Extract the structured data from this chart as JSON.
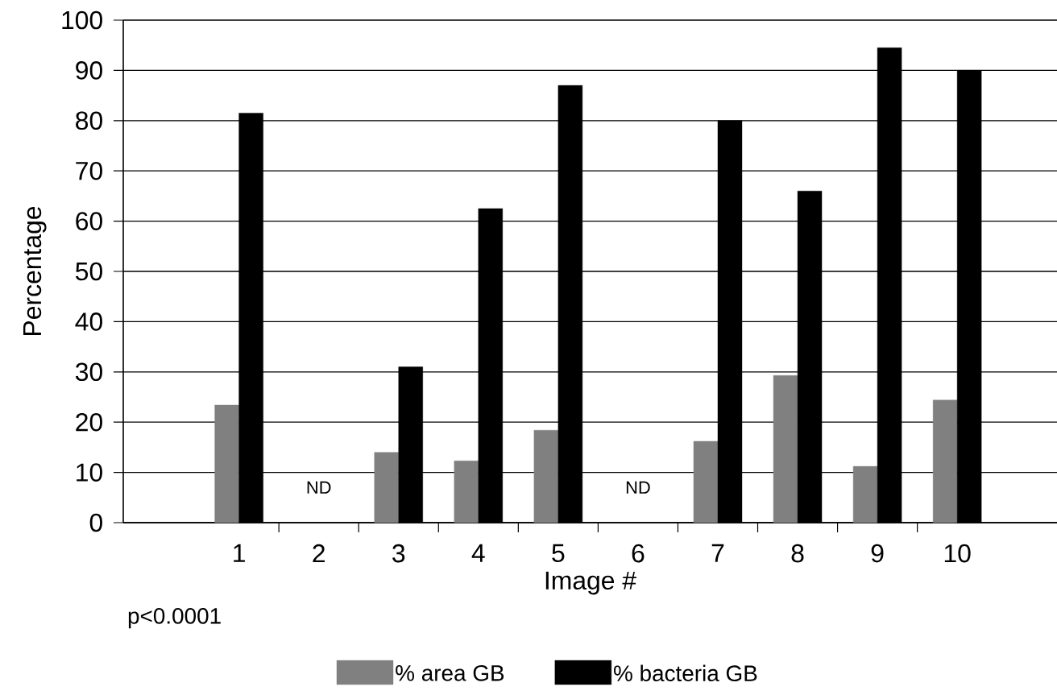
{
  "chart_data": {
    "type": "bar",
    "xlabel": "Image #",
    "ylabel": "Percentage",
    "categories": [
      "1",
      "2",
      "3",
      "4",
      "5",
      "6",
      "7",
      "8",
      "9",
      "10"
    ],
    "series": [
      {
        "name": "% area GB",
        "color": "#808080",
        "values": [
          23.4,
          null,
          14,
          12.3,
          18.4,
          null,
          16.2,
          29.3,
          11.2,
          24.4
        ]
      },
      {
        "name": "% bacteria GB",
        "color": "#000000",
        "values": [
          81.5,
          null,
          31,
          62.5,
          87,
          null,
          80,
          66,
          94.5,
          90
        ]
      }
    ],
    "ylim": [
      0,
      100
    ],
    "yticks": [
      0,
      10,
      20,
      30,
      40,
      50,
      60,
      70,
      80,
      90,
      100
    ],
    "grid": "y",
    "legend": "bottom",
    "annotations": [
      "ND",
      "ND",
      "p<0.0001"
    ]
  }
}
